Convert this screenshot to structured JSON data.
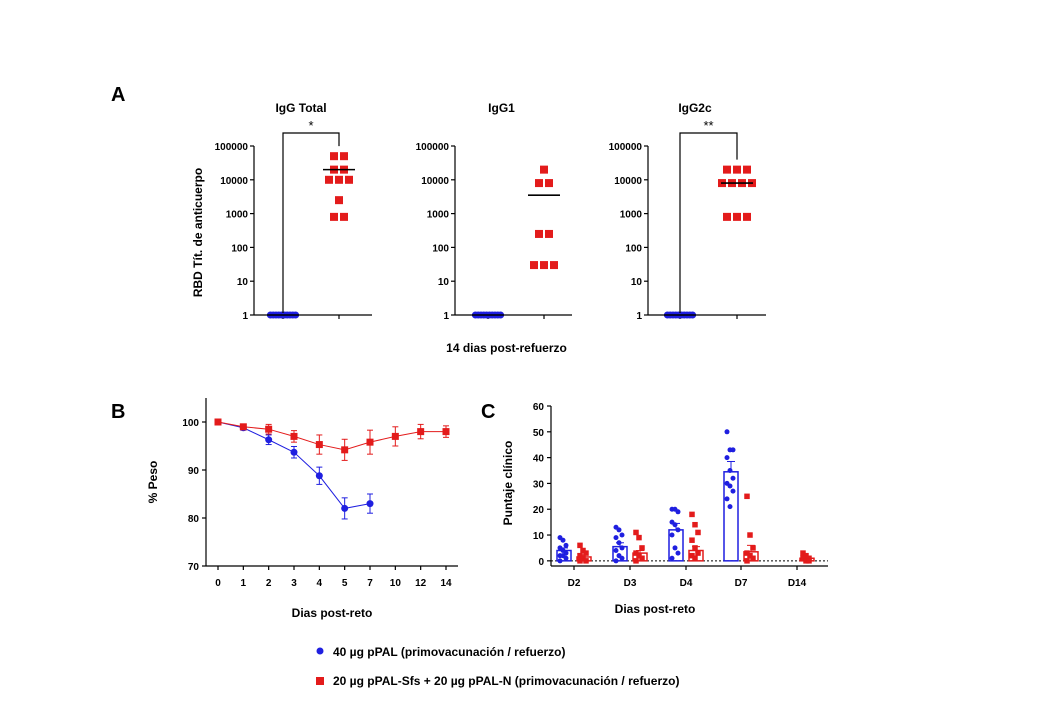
{
  "colors": {
    "blue": "#1f1fe0",
    "red": "#e31b1b",
    "black": "#000000"
  },
  "panel_labels": {
    "a": "A",
    "b": "B",
    "c": "C"
  },
  "legend": [
    {
      "label": "40 µg pPAL (primovacunación / refuerzo)",
      "color": "#1f1fe0",
      "marker": "circle"
    },
    {
      "label": "20 µg pPAL-Sfs + 20 µg pPAL-N (primovacunación / refuerzo)",
      "color": "#e31b1b",
      "marker": "square"
    }
  ],
  "chart_data": [
    {
      "type": "scatter",
      "panel": "A",
      "title": "IgG Total",
      "ylabel": "RBD Tít. de anticuerpo",
      "xlabel": "",
      "scale": "log",
      "ylim": [
        1,
        100000
      ],
      "yticks": [
        "1",
        "10",
        "100",
        "1000",
        "10000",
        "100000"
      ],
      "significance": "*",
      "series": [
        {
          "color": "#1f1fe0",
          "marker": "circle",
          "values": [
            1,
            1,
            1,
            1,
            1,
            1,
            1,
            1,
            1,
            1
          ],
          "mean": 1
        },
        {
          "color": "#e31b1b",
          "marker": "square",
          "values": [
            50000,
            50000,
            20000,
            20000,
            10000,
            10000,
            10000,
            2500,
            800,
            800
          ],
          "mean": 20000
        }
      ]
    },
    {
      "type": "scatter",
      "panel": "A",
      "title": "IgG1",
      "ylabel": "",
      "xlabel": "14 dias post-refuerzo",
      "scale": "log",
      "ylim": [
        1,
        100000
      ],
      "yticks": [
        "1",
        "10",
        "100",
        "1000",
        "10000",
        "100000"
      ],
      "significance": "",
      "series": [
        {
          "color": "#1f1fe0",
          "marker": "circle",
          "values": [
            1,
            1,
            1,
            1,
            1,
            1,
            1,
            1,
            1,
            1
          ],
          "mean": 1
        },
        {
          "color": "#e31b1b",
          "marker": "square",
          "values": [
            20000,
            8000,
            8000,
            250,
            250,
            30,
            30,
            30
          ],
          "mean": 3500
        }
      ]
    },
    {
      "type": "scatter",
      "panel": "A",
      "title": "IgG2c",
      "ylabel": "",
      "xlabel": "",
      "scale": "log",
      "ylim": [
        1,
        100000
      ],
      "yticks": [
        "1",
        "10",
        "100",
        "1000",
        "10000",
        "100000"
      ],
      "significance": "**",
      "series": [
        {
          "color": "#1f1fe0",
          "marker": "circle",
          "values": [
            1,
            1,
            1,
            1,
            1,
            1,
            1,
            1,
            1,
            1
          ],
          "mean": 1
        },
        {
          "color": "#e31b1b",
          "marker": "square",
          "values": [
            20000,
            20000,
            20000,
            8000,
            8000,
            8000,
            8000,
            800,
            800,
            800
          ],
          "mean": 8000
        }
      ]
    },
    {
      "type": "line",
      "panel": "B",
      "ylabel": "% Peso",
      "xlabel": "Dias post-reto",
      "ylim": [
        70,
        105
      ],
      "yticks": [
        "70",
        "80",
        "90",
        "100"
      ],
      "x": [
        "0",
        "1",
        "2",
        "3",
        "4",
        "5",
        "7",
        "10",
        "12",
        "14"
      ],
      "series": [
        {
          "color": "#1f1fe0",
          "marker": "circle",
          "values": [
            100,
            98.8,
            96.3,
            93.7,
            88.8,
            82,
            83,
            null,
            null,
            null
          ],
          "errors": [
            0.3,
            0.5,
            1,
            1.2,
            1.8,
            2.2,
            2,
            null,
            null,
            null
          ]
        },
        {
          "color": "#e31b1b",
          "marker": "square",
          "values": [
            100,
            99,
            98.5,
            97,
            95.3,
            94.2,
            95.8,
            97,
            98,
            98
          ],
          "errors": [
            0.3,
            0.5,
            1,
            1.2,
            2,
            2.2,
            2.5,
            2,
            1.5,
            1.2
          ]
        }
      ]
    },
    {
      "type": "bar",
      "panel": "C",
      "ylabel": "Puntaje clínico",
      "xlabel": "Dias post-reto",
      "ylim": [
        -2,
        60
      ],
      "yticks": [
        "0",
        "10",
        "20",
        "30",
        "40",
        "50",
        "60"
      ],
      "categories": [
        "D2",
        "D3",
        "D4",
        "D7",
        "D14"
      ],
      "series": [
        {
          "color": "#1f1fe0",
          "marker": "circle",
          "values": [
            4,
            5.5,
            12,
            34.5,
            0
          ],
          "errors": [
            1,
            1.5,
            2.5,
            4,
            0
          ],
          "points": [
            [
              9,
              8,
              6,
              5,
              4,
              3,
              2,
              2,
              1,
              0
            ],
            [
              13,
              12,
              10,
              9,
              7,
              5,
              4,
              2,
              1,
              0
            ],
            [
              20,
              20,
              19,
              15,
              14,
              12,
              10,
              5,
              3,
              1
            ],
            [
              50,
              43,
              43,
              40,
              35,
              32,
              30,
              29,
              27,
              24,
              21
            ]
          ]
        },
        {
          "color": "#e31b1b",
          "marker": "square",
          "values": [
            1.5,
            3,
            4,
            3.5,
            1
          ],
          "errors": [
            0.8,
            1,
            1.5,
            2.5,
            0.5
          ],
          "points": [
            [
              6,
              4,
              3,
              2,
              1,
              0,
              0
            ],
            [
              11,
              9,
              5,
              3,
              2,
              1,
              0
            ],
            [
              18,
              14,
              11,
              8,
              5,
              3,
              2,
              1
            ],
            [
              25,
              10,
              5,
              3,
              2,
              1,
              0
            ],
            [
              3,
              2,
              1,
              1,
              0,
              0
            ]
          ]
        }
      ]
    }
  ]
}
